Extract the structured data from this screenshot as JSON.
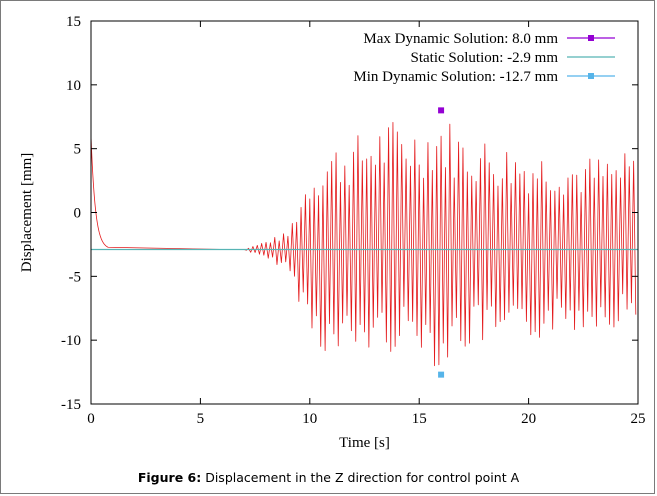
{
  "caption": {
    "label": "Figure 6:",
    "text": " Displacement in the Z direction for control point A"
  },
  "chart_data": {
    "type": "line",
    "xlabel": "Time [s]",
    "ylabel": "Displacement [mm]",
    "xlim": [
      0,
      25
    ],
    "ylim": [
      -15,
      15
    ],
    "xticks": [
      0,
      5,
      10,
      15,
      20,
      25
    ],
    "yticks": [
      -15,
      -10,
      -5,
      0,
      5,
      10,
      15
    ],
    "grid": false,
    "legend_position": "top-right",
    "series": [
      {
        "name": "Max Dynamic Solution: 8.0 mm",
        "style": "point",
        "color": "#9400d3",
        "x": [
          16.0
        ],
        "y": [
          8.0
        ]
      },
      {
        "name": "Static Solution: -2.9 mm",
        "style": "line",
        "color": "#56b4b4",
        "x": [
          0,
          25
        ],
        "y": [
          -2.9,
          -2.9
        ]
      },
      {
        "name": "Min Dynamic Solution: -12.7 mm",
        "style": "point",
        "color": "#56b4e9",
        "x": [
          16.0
        ],
        "y": [
          -12.7
        ]
      },
      {
        "name": "",
        "style": "oscillation",
        "color": "#e41a1c",
        "x": [
          0,
          0.8,
          7.0,
          9.0,
          10.0,
          11.0,
          12.0,
          13.0,
          14.0,
          15.0,
          16.0,
          17.0,
          18.0,
          19.0,
          20.0,
          21.0,
          22.0,
          23.0,
          24.0,
          25.0
        ],
        "y_upper": [
          6.0,
          -2.9,
          -2.9,
          -1.5,
          3.5,
          5.5,
          6.0,
          7.0,
          7.5,
          7.0,
          8.0,
          6.5,
          6.0,
          5.5,
          5.0,
          5.0,
          4.5,
          4.5,
          4.5,
          5.0
        ],
        "y_lower": [
          6.0,
          -2.9,
          -2.9,
          -4.5,
          -9.5,
          -12.0,
          -11.5,
          -11.0,
          -11.0,
          -10.5,
          -12.7,
          -11.0,
          -10.5,
          -11.0,
          -10.5,
          -9.5,
          -9.5,
          -9.0,
          -9.0,
          -8.5
        ]
      }
    ]
  }
}
